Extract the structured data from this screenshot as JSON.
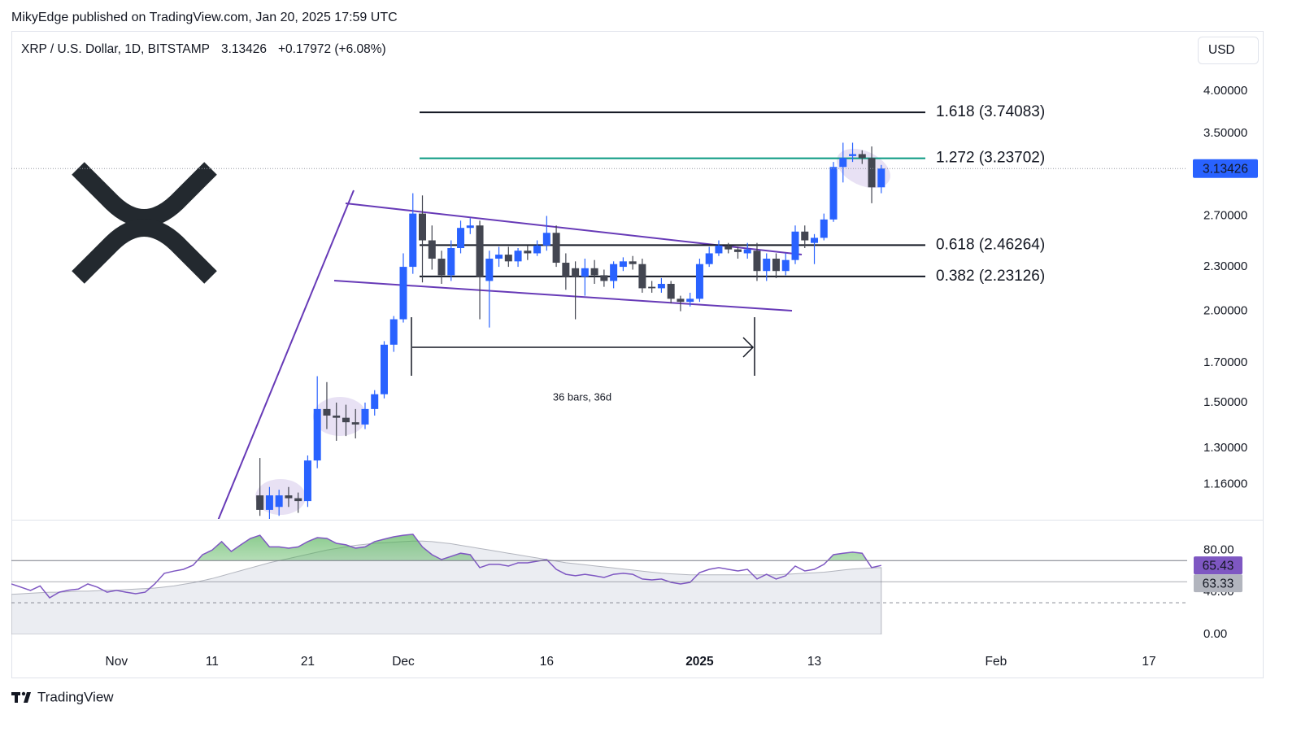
{
  "header": {
    "publisher": "MikyEdge published on TradingView.com, Jan 20, 2025 17:59 UTC",
    "currency": "USD",
    "brand": "TradingView"
  },
  "chart_data": {
    "type": "candlestick",
    "title": "XRP / U.S. Dollar, 1D, BITSTAMP",
    "change": "+0.17972 (+6.08%)",
    "x": [
      "2024-11-16",
      "2024-11-17",
      "2024-11-18",
      "2024-11-19",
      "2024-11-20",
      "2024-11-21",
      "2024-11-22",
      "2024-11-23",
      "2024-11-24",
      "2024-11-25",
      "2024-11-26",
      "2024-11-27",
      "2024-11-28",
      "2024-11-29",
      "2024-11-30",
      "2024-12-01",
      "2024-12-02",
      "2024-12-03",
      "2024-12-04",
      "2024-12-05",
      "2024-12-06",
      "2024-12-07",
      "2024-12-08",
      "2024-12-09",
      "2024-12-10",
      "2024-12-11",
      "2024-12-12",
      "2024-12-13",
      "2024-12-14",
      "2024-12-15",
      "2024-12-16",
      "2024-12-17",
      "2024-12-18",
      "2024-12-19",
      "2024-12-20",
      "2024-12-21",
      "2024-12-22",
      "2024-12-23",
      "2024-12-24",
      "2024-12-25",
      "2024-12-26",
      "2024-12-27",
      "2024-12-28",
      "2024-12-29",
      "2024-12-30",
      "2024-12-31",
      "2025-01-01",
      "2025-01-02",
      "2025-01-03",
      "2025-01-04",
      "2025-01-05",
      "2025-01-06",
      "2025-01-07",
      "2025-01-08",
      "2025-01-09",
      "2025-01-10",
      "2025-01-11",
      "2025-01-12",
      "2025-01-13",
      "2025-01-14",
      "2025-01-15",
      "2025-01-16",
      "2025-01-17",
      "2025-01-18",
      "2025-01-19",
      "2025-01-20"
    ],
    "open": [
      1.12,
      1.07,
      1.08,
      1.12,
      1.11,
      1.1,
      1.25,
      1.47,
      1.44,
      1.43,
      1.41,
      1.4,
      1.47,
      1.54,
      1.8,
      1.95,
      2.3,
      2.72,
      2.5,
      2.36,
      2.24,
      2.44,
      2.6,
      2.62,
      2.2,
      2.36,
      2.39,
      2.34,
      2.42,
      2.4,
      2.46,
      2.56,
      2.33,
      2.29,
      2.23,
      2.29,
      2.24,
      2.2,
      2.3,
      2.34,
      2.32,
      2.16,
      2.15,
      2.18,
      2.08,
      2.06,
      2.08,
      2.32,
      2.4,
      2.46,
      2.43,
      2.4,
      2.42,
      2.27,
      2.36,
      2.27,
      2.35,
      2.57,
      2.48,
      2.52,
      2.67,
      3.15,
      3.26,
      3.28,
      3.24,
      2.95454
    ],
    "high": [
      1.26,
      1.15,
      1.14,
      1.15,
      1.13,
      1.27,
      1.63,
      1.6,
      1.5,
      1.49,
      1.47,
      1.5,
      1.56,
      1.82,
      1.97,
      2.4,
      2.9,
      2.88,
      2.62,
      2.42,
      2.5,
      2.66,
      2.68,
      2.66,
      2.42,
      2.45,
      2.45,
      2.44,
      2.46,
      2.5,
      2.7,
      2.62,
      2.4,
      2.34,
      2.36,
      2.35,
      2.28,
      2.34,
      2.37,
      2.38,
      2.36,
      2.2,
      2.22,
      2.2,
      2.1,
      2.12,
      2.36,
      2.45,
      2.5,
      2.48,
      2.45,
      2.48,
      2.48,
      2.4,
      2.4,
      2.4,
      2.62,
      2.62,
      2.55,
      2.72,
      3.2,
      3.4,
      3.4,
      3.32,
      3.36,
      3.17
    ],
    "low": [
      1.05,
      1.04,
      1.05,
      1.08,
      1.06,
      1.08,
      1.22,
      1.38,
      1.33,
      1.35,
      1.34,
      1.38,
      1.44,
      1.52,
      1.76,
      1.93,
      2.25,
      2.19,
      2.28,
      2.18,
      2.2,
      2.4,
      2.55,
      1.95,
      1.9,
      2.3,
      2.3,
      2.3,
      2.35,
      2.38,
      2.42,
      2.3,
      2.14,
      1.95,
      2.1,
      2.18,
      2.16,
      2.15,
      2.27,
      2.28,
      2.12,
      2.12,
      2.12,
      2.05,
      2.0,
      2.03,
      2.06,
      2.3,
      2.38,
      2.4,
      2.36,
      2.36,
      2.2,
      2.2,
      2.22,
      2.24,
      2.32,
      2.44,
      2.32,
      2.5,
      2.65,
      3.0,
      3.2,
      3.18,
      2.81,
      2.9
    ],
    "close": [
      1.07,
      1.12,
      1.12,
      1.11,
      1.1,
      1.25,
      1.47,
      1.44,
      1.43,
      1.41,
      1.4,
      1.47,
      1.54,
      1.8,
      1.95,
      2.3,
      2.72,
      2.5,
      2.36,
      2.24,
      2.44,
      2.6,
      2.62,
      2.23,
      2.36,
      2.39,
      2.34,
      2.42,
      2.4,
      2.46,
      2.56,
      2.33,
      2.23,
      2.23,
      2.29,
      2.24,
      2.2,
      2.32,
      2.34,
      2.32,
      2.15,
      2.15,
      2.18,
      2.08,
      2.06,
      2.08,
      2.32,
      2.4,
      2.46,
      2.43,
      2.41,
      2.43,
      2.27,
      2.36,
      2.27,
      2.35,
      2.57,
      2.5,
      2.52,
      2.67,
      3.15,
      3.24,
      3.28,
      3.24,
      2.95454,
      3.13426
    ],
    "up_color": "#2962ff",
    "down_color": "#434651",
    "log_scale": true,
    "grid": false,
    "xlim": [
      "2024-10-21",
      "2025-02-21"
    ],
    "xticks": [
      {
        "value": "2024-11-01",
        "label": "Nov"
      },
      {
        "value": "2024-11-11",
        "label": "11"
      },
      {
        "value": "2024-11-21",
        "label": "21"
      },
      {
        "value": "2024-12-01",
        "label": "Dec"
      },
      {
        "value": "2024-12-16",
        "label": "16"
      },
      {
        "value": "2025-01-01",
        "label": "2025"
      },
      {
        "value": "2025-01-13",
        "label": "13"
      },
      {
        "value": "2025-02-01",
        "label": "Feb"
      },
      {
        "value": "2025-02-17",
        "label": "17"
      }
    ],
    "ylim": [
      1.04,
      4.81
    ],
    "yticks": [
      {
        "value": 4.0,
        "label": "4.00000"
      },
      {
        "value": 3.5,
        "label": "3.50000"
      },
      {
        "value": 2.7,
        "label": "2.70000"
      },
      {
        "value": 2.3,
        "label": "2.30000"
      },
      {
        "value": 2.0,
        "label": "2.00000"
      },
      {
        "value": 1.7,
        "label": "1.70000"
      },
      {
        "value": 1.5,
        "label": "1.50000"
      },
      {
        "value": 1.3,
        "label": "1.30000"
      },
      {
        "value": 1.16,
        "label": "1.16000"
      }
    ],
    "levels": [
      {
        "label": "1.618 (3.74083)",
        "value": 3.74083,
        "color": "#131722"
      },
      {
        "label": "1.272 (3.23702)",
        "value": 3.23702,
        "color": "#089981"
      },
      {
        "label": "0.618 (2.46264)",
        "value": 2.46264,
        "color": "#131722"
      },
      {
        "label": "0.382 (2.23126)",
        "value": 2.23126,
        "color": "#131722"
      }
    ],
    "annotation": "36 bars, 36d",
    "rsi": {
      "x": [
        "2024-10-21",
        "2024-10-22",
        "2024-10-23",
        "2024-10-24",
        "2024-10-25",
        "2024-10-26",
        "2024-10-27",
        "2024-10-28",
        "2024-10-29",
        "2024-10-30",
        "2024-10-31",
        "2024-11-01",
        "2024-11-02",
        "2024-11-03",
        "2024-11-04",
        "2024-11-05",
        "2024-11-06",
        "2024-11-07",
        "2024-11-08",
        "2024-11-09",
        "2024-11-10",
        "2024-11-11",
        "2024-11-12",
        "2024-11-13",
        "2024-11-14",
        "2024-11-15",
        "2024-11-16",
        "2024-11-17",
        "2024-11-18",
        "2024-11-19",
        "2024-11-20",
        "2024-11-21",
        "2024-11-22",
        "2024-11-23",
        "2024-11-24",
        "2024-11-25",
        "2024-11-26",
        "2024-11-27",
        "2024-11-28",
        "2024-11-29",
        "2024-11-30",
        "2024-12-01",
        "2024-12-02",
        "2024-12-03",
        "2024-12-04",
        "2024-12-05",
        "2024-12-06",
        "2024-12-07",
        "2024-12-08",
        "2024-12-09",
        "2024-12-10",
        "2024-12-11",
        "2024-12-12",
        "2024-12-13",
        "2024-12-14",
        "2024-12-15",
        "2024-12-16",
        "2024-12-17",
        "2024-12-18",
        "2024-12-19",
        "2024-12-20",
        "2024-12-21",
        "2024-12-22",
        "2024-12-23",
        "2024-12-24",
        "2024-12-25",
        "2024-12-26",
        "2024-12-27",
        "2024-12-28",
        "2024-12-29",
        "2024-12-30",
        "2024-12-31",
        "2025-01-01",
        "2025-01-02",
        "2025-01-03",
        "2025-01-04",
        "2025-01-05",
        "2025-01-06",
        "2025-01-07",
        "2025-01-08",
        "2025-01-09",
        "2025-01-10",
        "2025-01-11",
        "2025-01-12",
        "2025-01-13",
        "2025-01-14",
        "2025-01-15",
        "2025-01-16",
        "2025-01-17",
        "2025-01-18",
        "2025-01-19",
        "2025-01-20"
      ],
      "values": [
        47.8,
        44.8,
        41.7,
        46,
        34.7,
        40,
        42,
        43,
        47.8,
        44.8,
        40,
        41.7,
        40,
        38.6,
        40,
        47.8,
        57.9,
        60,
        61.7,
        65.6,
        75.6,
        80,
        88,
        78.7,
        84.9,
        91,
        94,
        83,
        83,
        81.8,
        83,
        88,
        91.8,
        91,
        86.4,
        84.9,
        81.8,
        83,
        88,
        90.3,
        92.6,
        94,
        95,
        83,
        75.6,
        71,
        74,
        77,
        75.6,
        63.3,
        66.4,
        66.4,
        64.8,
        67.9,
        67.9,
        69.4,
        71,
        61.7,
        57,
        55.6,
        57,
        55.6,
        54,
        57,
        57.9,
        57,
        52.5,
        51.7,
        52.5,
        49.4,
        47.8,
        49.4,
        58.6,
        61.7,
        63.3,
        61.7,
        60.2,
        61.7,
        52.5,
        57,
        52.5,
        55.6,
        64.8,
        60.2,
        61.7,
        66.4,
        75.6,
        77,
        78,
        77,
        63.3,
        65.43
      ],
      "ma": [
        38,
        38.5,
        39,
        39.5,
        40,
        40,
        40.5,
        41,
        41,
        41.5,
        42,
        42,
        42.5,
        43,
        43.5,
        44,
        45,
        46,
        47.5,
        49,
        51,
        53,
        55.5,
        58,
        60.5,
        63,
        65.5,
        68,
        70,
        72,
        74,
        76,
        78,
        80,
        81.5,
        83,
        84.5,
        85.5,
        86.5,
        87,
        87.5,
        88,
        88.5,
        88.5,
        88,
        87,
        86,
        84.5,
        83,
        81.5,
        80,
        78.5,
        77,
        75.5,
        74,
        72.5,
        71,
        69.5,
        68,
        67,
        66,
        65,
        64,
        63,
        62,
        61,
        60,
        59,
        58,
        57.5,
        57,
        56.5,
        56.5,
        56.5,
        56.5,
        56.5,
        56.5,
        56.5,
        56.5,
        56.5,
        56.5,
        57,
        57.5,
        58,
        58.5,
        59,
        60,
        61,
        62,
        62.5,
        63,
        63.33
      ],
      "color": "#7e57c2",
      "ma_color": "#b2b5be",
      "ylim": [
        0,
        108
      ],
      "yticks": [
        {
          "value": 80,
          "label": "80.00"
        },
        {
          "value": 40,
          "label": "40.00"
        },
        {
          "value": 0,
          "label": "0.00"
        }
      ],
      "bands": [
        70,
        50,
        30
      ]
    }
  }
}
